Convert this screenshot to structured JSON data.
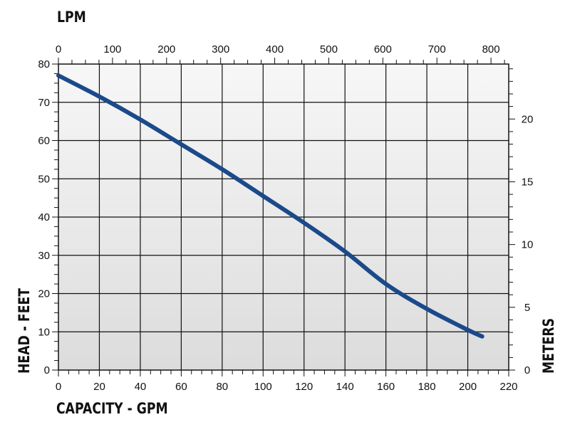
{
  "chart_data": {
    "type": "line",
    "x_bottom": {
      "label": "CAPACITY - GPM",
      "min": 0,
      "max": 220,
      "ticks": [
        0,
        20,
        40,
        60,
        80,
        100,
        120,
        140,
        160,
        180,
        200,
        220
      ]
    },
    "x_top": {
      "label": "LPM",
      "min": 0,
      "max": 832.8,
      "ticks": [
        0,
        100,
        200,
        300,
        400,
        500,
        600,
        700,
        800
      ]
    },
    "y_left": {
      "label": "HEAD - FEET",
      "min": 0,
      "max": 80,
      "ticks": [
        0,
        10,
        20,
        30,
        40,
        50,
        60,
        70,
        80
      ]
    },
    "y_right": {
      "label": "METERS",
      "min": 0,
      "max": 24.38,
      "ticks": [
        0,
        5,
        10,
        15,
        20
      ]
    },
    "grid": true,
    "series": [
      {
        "color": "#1a4a8a",
        "x": [
          0,
          20,
          40,
          60,
          80,
          100,
          120,
          140,
          160,
          180,
          200,
          207
        ],
        "y": [
          77,
          71.5,
          65.5,
          59,
          52.5,
          45.5,
          38.5,
          31,
          22.5,
          16,
          10.5,
          8.8
        ]
      }
    ]
  }
}
